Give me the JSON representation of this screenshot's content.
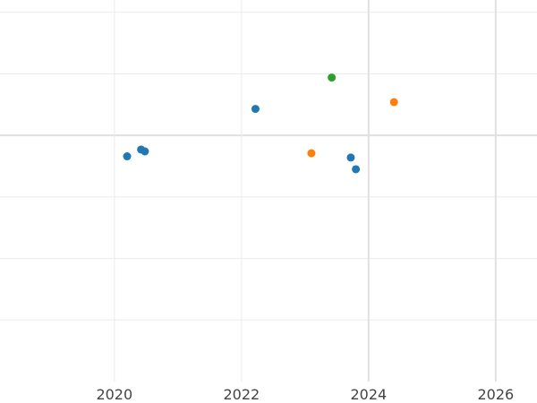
{
  "chart_data": {
    "type": "scatter",
    "title": "",
    "xlabel": "",
    "ylabel": "",
    "x_ticks": [
      2020,
      2022,
      2024,
      2026
    ],
    "x_ticks_emphasized": [
      2024,
      2026
    ],
    "xlim": [
      2018.2,
      2026.65
    ],
    "ylim": [
      0,
      6.2
    ],
    "y_gridlines": [
      1,
      2,
      3,
      4,
      5,
      6
    ],
    "y_gridlines_emphasized": [
      4
    ],
    "grid": true,
    "colors": [
      "#1f77b4",
      "#ff7f0e",
      "#2ca02c"
    ],
    "series": [
      {
        "color": "#1f77b4",
        "points": [
          {
            "x": 2020.2,
            "y": 3.66
          },
          {
            "x": 2020.42,
            "y": 3.77
          },
          {
            "x": 2020.48,
            "y": 3.74
          },
          {
            "x": 2022.22,
            "y": 4.43
          },
          {
            "x": 2023.72,
            "y": 3.64
          },
          {
            "x": 2023.8,
            "y": 3.45
          }
        ]
      },
      {
        "color": "#ff7f0e",
        "points": [
          {
            "x": 2023.1,
            "y": 3.71
          },
          {
            "x": 2024.4,
            "y": 4.54
          }
        ]
      },
      {
        "color": "#2ca02c",
        "points": [
          {
            "x": 2023.42,
            "y": 4.94
          }
        ]
      }
    ]
  }
}
